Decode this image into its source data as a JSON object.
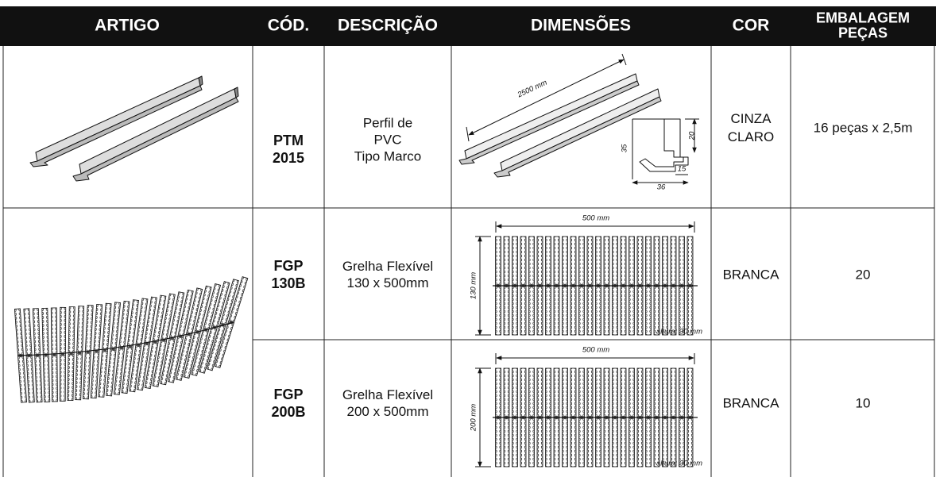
{
  "header": {
    "columns": [
      [
        "ARTIGO"
      ],
      [
        "CÓD."
      ],
      [
        "DESCRIÇÃO"
      ],
      [
        "DIMENSÕES"
      ],
      [
        "COR"
      ],
      [
        "EMBALAGEM",
        "PEÇAS"
      ]
    ]
  },
  "rows": [
    {
      "code": [
        "PTM",
        "2015"
      ],
      "description": [
        "Perfil de",
        "PVC",
        "Tipo Marco"
      ],
      "dimensions": {
        "length": "2500 mm",
        "labels": [
          "20",
          "35",
          "15",
          "36"
        ]
      },
      "color": [
        "CINZA",
        "CLARO"
      ],
      "packaging": "16 peças x 2,5m"
    },
    {
      "code": [
        "FGP",
        "130B"
      ],
      "description": [
        "Grelha Flexível",
        "130 x 500mm"
      ],
      "dimensions": {
        "width": "500 mm",
        "height": "130 mm",
        "note": "altura: 30 mm"
      },
      "color": [
        "BRANCA"
      ],
      "packaging": "20"
    },
    {
      "code": [
        "FGP",
        "200B"
      ],
      "description": [
        "Grelha Flexível",
        "200 x 500mm"
      ],
      "dimensions": {
        "width": "500 mm",
        "height": "200 mm",
        "note": "altura: 30 mm"
      },
      "color": [
        "BRANCA"
      ],
      "packaging": "10"
    }
  ]
}
